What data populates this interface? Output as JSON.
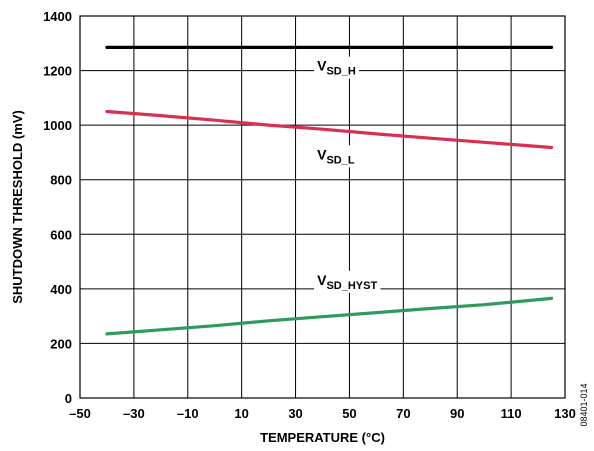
{
  "chart_data": {
    "type": "line",
    "title": "",
    "xlabel": "TEMPERATURE (°C)",
    "ylabel": "SHUTDOWN THRESHOLD (mV)",
    "xlim": [
      -50,
      130
    ],
    "ylim": [
      0,
      1400
    ],
    "x_ticks": [
      "–50",
      "–30",
      "–10",
      "10",
      "30",
      "50",
      "70",
      "90",
      "110",
      "130"
    ],
    "y_ticks": [
      "0",
      "200",
      "400",
      "600",
      "800",
      "1000",
      "1200",
      "1400"
    ],
    "grid": true,
    "figure_id": "08401-014",
    "x": [
      -40,
      -20,
      0,
      20,
      40,
      60,
      80,
      100,
      125
    ],
    "series": [
      {
        "name_main": "V",
        "name_sub": "SD_H",
        "color": "#000000",
        "values": [
          1285,
          1285,
          1285,
          1285,
          1285,
          1285,
          1285,
          1285,
          1285
        ]
      },
      {
        "name_main": "V",
        "name_sub": "SD_L",
        "color": "#d9304f",
        "values": [
          1050,
          1035,
          1018,
          1000,
          985,
          968,
          952,
          937,
          918
        ]
      },
      {
        "name_main": "V",
        "name_sub": "SD_HYST",
        "color": "#2e9a5c",
        "values": [
          235,
          250,
          265,
          283,
          298,
          313,
          328,
          342,
          365
        ]
      }
    ]
  }
}
